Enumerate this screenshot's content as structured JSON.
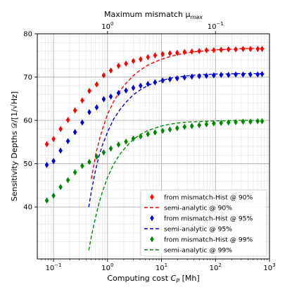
{
  "chart_data": {
    "type": "scatter",
    "xlabel": "Computing cost",
    "xlabel_symbol": "C",
    "xlabel_subscript": "P",
    "xlabel_unit": "[Mh]",
    "ylabel": "Sensitivity Depths 𝒟/[1/√Hz]",
    "top_axis_label": "Maximum mismatch μ",
    "top_axis_label_subscript": "max",
    "x_scale": "log",
    "xlim": [
      0.05,
      1000
    ],
    "ylim": [
      28,
      80
    ],
    "grid": true,
    "minor_grid": true,
    "legend_position": "lower-right",
    "x_ticks": [
      {
        "value": 0.1,
        "base": "10",
        "exp": "−1"
      },
      {
        "value": 1,
        "base": "10",
        "exp": "0"
      },
      {
        "value": 10,
        "base": "10",
        "exp": "1"
      },
      {
        "value": 100,
        "base": "10",
        "exp": "2"
      },
      {
        "value": 1000,
        "base": "10",
        "exp": "3"
      }
    ],
    "y_ticks": [
      40,
      50,
      60,
      70,
      80
    ],
    "top_ticks": [
      {
        "cost": 1,
        "base": "10",
        "exp": "0"
      },
      {
        "cost": 100,
        "base": "10",
        "exp": "−1"
      }
    ],
    "series": [
      {
        "name": "from mismatch-Hist @ 90%",
        "kind": "scatter",
        "marker": "diamond",
        "color": "#ff0000",
        "x": [
          0.075,
          0.1,
          0.135,
          0.185,
          0.25,
          0.34,
          0.46,
          0.63,
          0.85,
          1.15,
          1.6,
          2.2,
          3.0,
          4.1,
          5.6,
          7.6,
          10.5,
          14.3,
          19.5,
          26.7,
          36.5,
          50,
          68,
          93,
          127,
          174,
          237,
          324,
          443,
          605,
          730
        ],
        "y": [
          54.5,
          55.7,
          58.0,
          60.1,
          62.3,
          64.6,
          66.8,
          68.3,
          70.4,
          71.5,
          72.6,
          73.1,
          73.7,
          74.1,
          74.6,
          75.0,
          75.3,
          75.5,
          75.6,
          75.8,
          75.9,
          76.0,
          76.2,
          76.2,
          76.3,
          76.4,
          76.4,
          76.5,
          76.5,
          76.5,
          76.5
        ]
      },
      {
        "name": "semi-analytic @ 90%",
        "kind": "line",
        "dash": true,
        "color": "#ff0000",
        "x": [
          0.5,
          0.55,
          0.6,
          0.7,
          0.8,
          1.0,
          1.3,
          1.7,
          2.2,
          3.0,
          4.0,
          5.5,
          7.5,
          10,
          14,
          20,
          30,
          45,
          70,
          100,
          150,
          250,
          400,
          700
        ],
        "y": [
          46.5,
          49.2,
          52.0,
          55.3,
          57.9,
          61.4,
          64.4,
          66.8,
          68.6,
          70.3,
          71.6,
          72.7,
          73.5,
          74.1,
          74.7,
          75.2,
          75.6,
          75.9,
          76.1,
          76.3,
          76.4,
          76.5,
          76.6,
          76.6
        ]
      },
      {
        "name": "from mismatch-Hist @ 95%",
        "kind": "scatter",
        "marker": "diamond",
        "color": "#0000dd",
        "x": [
          0.075,
          0.1,
          0.135,
          0.185,
          0.25,
          0.34,
          0.46,
          0.63,
          0.85,
          1.15,
          1.6,
          2.2,
          3.0,
          4.1,
          5.6,
          7.6,
          10.5,
          14.3,
          19.5,
          26.7,
          36.5,
          50,
          68,
          93,
          127,
          174,
          237,
          324,
          443,
          605,
          730
        ],
        "y": [
          49.7,
          50.6,
          53.0,
          55.2,
          57.3,
          59.5,
          61.9,
          63.0,
          64.9,
          65.5,
          66.3,
          66.9,
          67.5,
          68.0,
          68.4,
          68.8,
          69.2,
          69.5,
          69.7,
          69.9,
          70.1,
          70.2,
          70.3,
          70.4,
          70.5,
          70.5,
          70.6,
          70.6,
          70.6,
          70.6,
          70.7
        ]
      },
      {
        "name": "semi-analytic @ 95%",
        "kind": "line",
        "dash": true,
        "color": "#0000dd",
        "x": [
          0.45,
          0.5,
          0.6,
          0.7,
          0.8,
          1.0,
          1.3,
          1.7,
          2.2,
          3.0,
          4.0,
          5.5,
          7.5,
          10,
          14,
          20,
          30,
          45,
          70,
          100,
          150,
          250,
          400,
          700
        ],
        "y": [
          40.0,
          43.5,
          48.5,
          51.9,
          54.2,
          57.3,
          60.3,
          62.5,
          64.2,
          65.9,
          67.0,
          68.0,
          68.7,
          69.2,
          69.7,
          70.0,
          70.3,
          70.5,
          70.6,
          70.7,
          70.7,
          70.8,
          70.8,
          70.8
        ]
      },
      {
        "name": "from mismatch-Hist @ 99%",
        "kind": "scatter",
        "marker": "diamond",
        "color": "#008800",
        "x": [
          0.075,
          0.1,
          0.135,
          0.185,
          0.25,
          0.34,
          0.46,
          0.63,
          0.85,
          1.15,
          1.6,
          2.2,
          3.0,
          4.1,
          5.6,
          7.6,
          10.5,
          14.3,
          19.5,
          26.7,
          36.5,
          50,
          68,
          93,
          127,
          174,
          237,
          324,
          443,
          605,
          730
        ],
        "y": [
          41.5,
          42.6,
          44.6,
          46.2,
          48.0,
          49.5,
          50.4,
          51.6,
          52.6,
          53.5,
          54.4,
          55.1,
          55.8,
          56.3,
          56.8,
          57.2,
          57.6,
          57.9,
          58.2,
          58.5,
          58.7,
          58.9,
          59.1,
          59.3,
          59.4,
          59.5,
          59.6,
          59.7,
          59.7,
          59.8,
          59.8
        ]
      },
      {
        "name": "semi-analytic @ 99%",
        "kind": "line",
        "dash": true,
        "color": "#008800",
        "x": [
          0.45,
          0.5,
          0.55,
          0.6,
          0.7,
          0.8,
          1.0,
          1.3,
          1.7,
          2.2,
          3.0,
          4.0,
          5.5,
          7.5,
          10,
          14,
          20,
          30,
          45,
          70,
          100,
          150,
          250,
          400,
          700
        ],
        "y": [
          30.0,
          33.0,
          35.5,
          37.6,
          41.0,
          43.4,
          46.8,
          49.9,
          52.2,
          53.9,
          55.6,
          56.7,
          57.6,
          58.2,
          58.7,
          59.1,
          59.4,
          59.6,
          59.7,
          59.8,
          59.9,
          59.9,
          60.0,
          60.0,
          60.0
        ]
      }
    ]
  }
}
